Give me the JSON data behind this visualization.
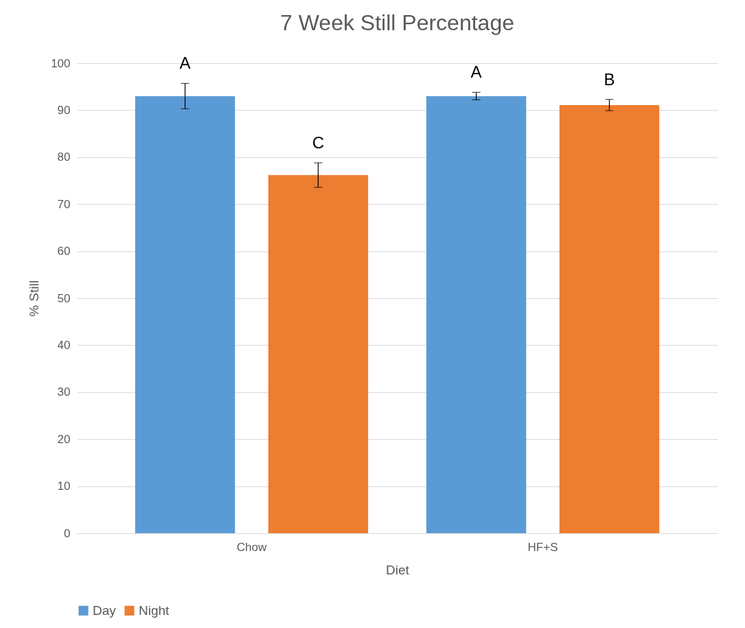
{
  "chart_data": {
    "type": "bar",
    "title": "7 Week Still Percentage",
    "xlabel": "Diet",
    "ylabel": "% Still",
    "categories": [
      "Chow",
      "HF+S"
    ],
    "series": [
      {
        "name": "Day",
        "color": "#5b9bd5",
        "values": [
          93.0,
          93.0
        ],
        "errors": [
          2.7,
          0.8
        ],
        "value_labels": [
          "A",
          "A"
        ]
      },
      {
        "name": "Night",
        "color": "#ed7d31",
        "values": [
          76.2,
          91.1
        ],
        "errors": [
          2.6,
          1.2
        ],
        "value_labels": [
          "C",
          "B"
        ]
      }
    ],
    "ylim": [
      0,
      100
    ],
    "yticks": [
      0,
      10,
      20,
      30,
      40,
      50,
      60,
      70,
      80,
      90,
      100
    ],
    "grid": "y",
    "legend": "bottom"
  }
}
